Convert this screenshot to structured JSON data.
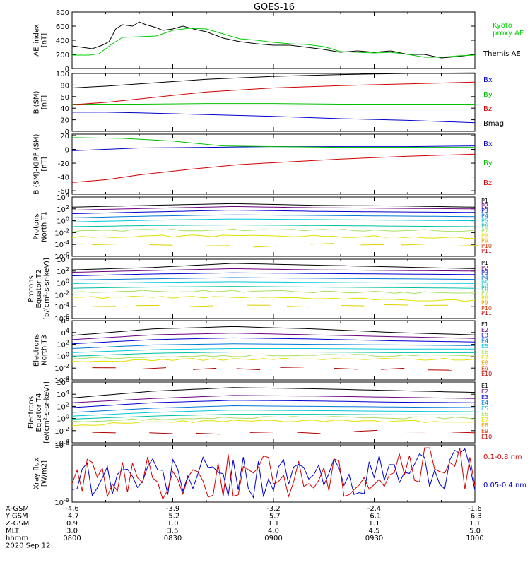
{
  "title": "GOES-16",
  "footer": {
    "rows": [
      {
        "label": "X-GSM",
        "values": [
          "-4.6",
          "-3.9",
          "-3.2",
          "-2.4",
          "-1.6"
        ]
      },
      {
        "label": "Y-GSM",
        "values": [
          "-4.7",
          "-5.2",
          "-5.7",
          "-6.1",
          "-6.3"
        ]
      },
      {
        "label": "Z-GSM",
        "values": [
          "0.9",
          "1.0",
          "1.1",
          "1.1",
          "1.1"
        ]
      },
      {
        "label": "MLT",
        "values": [
          "3.0",
          "3.5",
          "4.0",
          "4.5",
          "5.0"
        ]
      },
      {
        "label": "hhmm",
        "values": [
          "0800",
          "0830",
          "0900",
          "0930",
          "1000"
        ]
      }
    ],
    "date": "2020 Sep 12"
  },
  "colors": {
    "black": "#000000",
    "green": "#00d000",
    "blue": "#0000c8",
    "red": "#d00000",
    "bx": "#0000c8",
    "by": "#00c000",
    "bz": "#d00000",
    "bmag": "#000000",
    "channels": [
      "#000000",
      "#6a0080",
      "#0000d0",
      "#0078d8",
      "#00c8d8",
      "#00c0a0",
      "#a8e060",
      "#e0e000",
      "#e8a000",
      "#d83000",
      "#c00000"
    ]
  },
  "chart_data": [
    {
      "type": "line",
      "id": "ae",
      "ylabel": [
        "AE_index",
        "[nT]"
      ],
      "ylim": [
        0,
        800
      ],
      "yticks": [
        "0",
        "200",
        "400",
        "600",
        "800"
      ],
      "legend": [
        {
          "text": "Kyoto",
          "color": "#00d000"
        },
        {
          "text": "proxy AE",
          "color": "#00d000"
        },
        {
          "text": "Themis AE",
          "color": "#000000"
        }
      ],
      "series": [
        {
          "name": "Themis AE",
          "color": "#000000",
          "x": [
            0,
            3,
            6,
            9,
            11,
            13,
            15,
            18,
            20,
            22,
            25,
            27,
            30,
            33,
            37,
            40,
            45,
            50,
            55,
            60,
            65,
            70,
            75,
            80,
            85,
            90,
            95,
            100,
            105,
            110,
            115,
            120
          ],
          "y": [
            320,
            300,
            280,
            330,
            380,
            560,
            620,
            600,
            660,
            620,
            580,
            540,
            560,
            600,
            550,
            520,
            430,
            380,
            350,
            330,
            330,
            300,
            270,
            230,
            250,
            230,
            250,
            200,
            200,
            150,
            170,
            200
          ]
        },
        {
          "name": "Kyoto proxy AE",
          "color": "#00d000",
          "x": [
            0,
            5,
            8,
            12,
            15,
            20,
            25,
            30,
            35,
            40,
            45,
            50,
            55,
            60,
            65,
            70,
            75,
            80,
            85,
            90,
            95,
            100,
            105,
            110,
            115,
            120
          ],
          "y": [
            190,
            190,
            210,
            350,
            440,
            450,
            460,
            540,
            570,
            560,
            490,
            420,
            400,
            370,
            350,
            340,
            310,
            240,
            230,
            220,
            230,
            200,
            160,
            160,
            180,
            190
          ]
        }
      ]
    },
    {
      "type": "line",
      "id": "bsm",
      "ylabel": [
        "B (SM)",
        "[nT]"
      ],
      "ylim": [
        0,
        100
      ],
      "yticks": [
        "0",
        "20",
        "40",
        "60",
        "80",
        "100"
      ],
      "legend": [
        {
          "text": "Bx",
          "color": "#0000c8"
        },
        {
          "text": "By",
          "color": "#00c000"
        },
        {
          "text": "Bz",
          "color": "#d00000"
        },
        {
          "text": "Bmag",
          "color": "#000000"
        }
      ],
      "series": [
        {
          "name": "Bx",
          "color": "#0000c8",
          "x": [
            0,
            10,
            20,
            40,
            60,
            80,
            100,
            120
          ],
          "y": [
            33,
            33,
            32,
            29,
            26,
            22,
            19,
            15
          ]
        },
        {
          "name": "By",
          "color": "#00c000",
          "x": [
            0,
            20,
            40,
            60,
            80,
            100,
            120
          ],
          "y": [
            47,
            47,
            48,
            48,
            47,
            47,
            47
          ]
        },
        {
          "name": "Bz",
          "color": "#d00000",
          "x": [
            0,
            10,
            20,
            40,
            60,
            80,
            100,
            120
          ],
          "y": [
            46,
            50,
            56,
            68,
            75,
            79,
            82,
            85
          ]
        },
        {
          "name": "Bmag",
          "color": "#000000",
          "x": [
            0,
            10,
            20,
            40,
            60,
            80,
            100,
            120
          ],
          "y": [
            75,
            78,
            82,
            90,
            95,
            98,
            100,
            101
          ]
        }
      ]
    },
    {
      "type": "line",
      "id": "bdiff",
      "ylabel": [
        "B (SM)-IGRF (SM)",
        "[nT]"
      ],
      "ylim": [
        -65,
        22
      ],
      "yticks": [
        "-60",
        "-40",
        "-20",
        "0",
        "20"
      ],
      "legend": [
        {
          "text": "Bx",
          "color": "#0000c8"
        },
        {
          "text": "By",
          "color": "#00c000"
        },
        {
          "text": "Bz",
          "color": "#d00000"
        }
      ],
      "series": [
        {
          "name": "Bx",
          "color": "#0000c8",
          "x": [
            0,
            20,
            40,
            60,
            80,
            100,
            120
          ],
          "y": [
            -2,
            2,
            3,
            4,
            4,
            4,
            5
          ]
        },
        {
          "name": "By",
          "color": "#00c000",
          "x": [
            0,
            15,
            30,
            45,
            60,
            80,
            100,
            120
          ],
          "y": [
            17,
            16,
            12,
            5,
            4,
            3,
            3,
            3
          ]
        },
        {
          "name": "Bz",
          "color": "#d00000",
          "x": [
            0,
            10,
            20,
            35,
            50,
            65,
            80,
            100,
            120
          ],
          "y": [
            -48,
            -44,
            -37,
            -29,
            -22,
            -18,
            -14,
            -10,
            -7
          ]
        }
      ]
    },
    {
      "type": "line",
      "id": "pn",
      "log": true,
      "ylabel": [
        "Protons",
        "North T1"
      ],
      "ylim": [
        -6,
        4
      ],
      "yticks": [
        "10^4",
        "10^2",
        "10^0",
        "10^-2",
        "10^-4",
        "10^-6"
      ],
      "legend": [
        "P1",
        "P2",
        "P3",
        "P4",
        "P5",
        "P6",
        "P7",
        "P8",
        "P9",
        "P10",
        "P11"
      ],
      "levels": [
        [
          2.3,
          2.6,
          2.9,
          2.6,
          2.5,
          2.3
        ],
        [
          1.8,
          2.1,
          2.4,
          2.2,
          2.1,
          2.0
        ],
        [
          1.2,
          1.5,
          1.8,
          1.6,
          1.5,
          1.4
        ],
        [
          0.5,
          0.8,
          1.0,
          0.9,
          0.8,
          0.7
        ],
        [
          -0.2,
          0.1,
          0.3,
          0.2,
          0.1,
          0.0
        ],
        [
          -1.0,
          -0.8,
          -0.7,
          -0.8,
          -0.9,
          -1.0
        ],
        [
          -1.8,
          -1.6,
          -1.5,
          -1.6,
          -1.6,
          -1.7
        ],
        [
          -2.8,
          -2.6,
          -2.5,
          -2.6,
          -2.7,
          -2.8
        ]
      ]
    },
    {
      "type": "line",
      "id": "pe",
      "log": true,
      "ylabel": [
        "Protons",
        "Equator T2",
        "[p/(cm²-s-sr-keV)]"
      ],
      "ylim": [
        -6,
        4
      ],
      "yticks": [
        "10^4",
        "10^2",
        "10^0",
        "10^-2",
        "10^-4",
        "10^-6"
      ],
      "legend": [
        "P1",
        "P2",
        "P3",
        "P4",
        "P5",
        "P6",
        "P7",
        "P8",
        "P9",
        "P10",
        "P11"
      ],
      "levels": [
        [
          2.2,
          2.6,
          3.3,
          3.0,
          2.7,
          2.4
        ],
        [
          1.8,
          2.1,
          2.4,
          2.2,
          2.1,
          2.0
        ],
        [
          1.2,
          1.5,
          1.7,
          1.6,
          1.5,
          1.4
        ],
        [
          0.5,
          0.7,
          0.9,
          0.8,
          0.7,
          0.6
        ],
        [
          -0.1,
          0.1,
          0.2,
          0.1,
          0.0,
          -0.1
        ],
        [
          -0.9,
          -0.7,
          -0.6,
          -0.7,
          -0.8,
          -0.9
        ],
        [
          -1.6,
          -1.4,
          -1.4,
          -1.5,
          -1.6,
          -1.7
        ],
        [
          -2.5,
          -2.4,
          -2.5,
          -2.6,
          -2.8,
          -3.0
        ]
      ]
    },
    {
      "type": "line",
      "id": "en",
      "log": true,
      "ylabel": [
        "Electrons",
        "North T3"
      ],
      "ylim": [
        -4,
        6
      ],
      "yticks": [
        "10^6",
        "10^4",
        "10^2",
        "10^0",
        "10^-2",
        "10^-4"
      ],
      "legend": [
        "E1",
        "E2",
        "E3",
        "E4",
        "E5",
        "E6",
        "E7",
        "E8",
        "E9",
        "E10"
      ],
      "levels": [
        [
          3.5,
          4.6,
          5.0,
          4.6,
          4.0,
          3.6
        ],
        [
          2.8,
          3.6,
          3.9,
          3.6,
          3.3,
          3.0
        ],
        [
          2.1,
          2.8,
          3.1,
          2.9,
          2.6,
          2.4
        ],
        [
          1.3,
          1.9,
          2.1,
          2.0,
          1.9,
          1.8
        ],
        [
          0.6,
          1.1,
          1.3,
          1.3,
          1.2,
          1.2
        ],
        [
          0.0,
          0.5,
          0.7,
          0.7,
          0.6,
          0.6
        ],
        [
          -0.5,
          0.0,
          0.1,
          0.2,
          0.1,
          0.1
        ],
        [
          -1.0,
          -0.6,
          -0.5,
          -0.5,
          -0.5,
          -0.5
        ]
      ]
    },
    {
      "type": "line",
      "id": "ee",
      "log": true,
      "ylabel": [
        "Electrons",
        "Equator T4",
        "[e/(cm²-s-sr-keV)]"
      ],
      "ylim": [
        -4,
        6
      ],
      "yticks": [
        "10^6",
        "10^4",
        "10^2",
        "10^0",
        "10^-2",
        "10^-4"
      ],
      "legend": [
        "E1",
        "E2",
        "E3",
        "E4",
        "E5",
        "E6",
        "E7",
        "E8",
        "E9",
        "E10"
      ],
      "levels": [
        [
          3.4,
          4.5,
          5.1,
          4.9,
          4.6,
          4.3
        ],
        [
          2.6,
          3.3,
          3.8,
          3.7,
          3.5,
          3.3
        ],
        [
          1.8,
          2.6,
          3.0,
          2.9,
          2.7,
          2.6
        ],
        [
          1.0,
          1.7,
          2.1,
          2.0,
          1.9,
          1.8
        ],
        [
          0.4,
          1.0,
          1.4,
          1.3,
          1.2,
          1.1
        ],
        [
          -0.1,
          0.4,
          0.7,
          0.7,
          0.6,
          0.6
        ],
        [
          -0.6,
          -0.1,
          0.2,
          0.2,
          0.1,
          0.1
        ],
        [
          -1.1,
          -0.6,
          -0.4,
          -0.4,
          -0.5,
          -0.5
        ]
      ]
    },
    {
      "type": "line",
      "id": "xray",
      "log": true,
      "ylabel": [
        "Xray flux",
        "[W/m2]"
      ],
      "ylim": [
        -9,
        -8
      ],
      "yticks": [
        "10^-8",
        "10^-9"
      ],
      "legend": [
        {
          "text": "0.1-0.8 nm",
          "color": "#d00000"
        },
        {
          "text": "0.05-0.4 nm",
          "color": "#0000c8"
        }
      ]
    }
  ]
}
